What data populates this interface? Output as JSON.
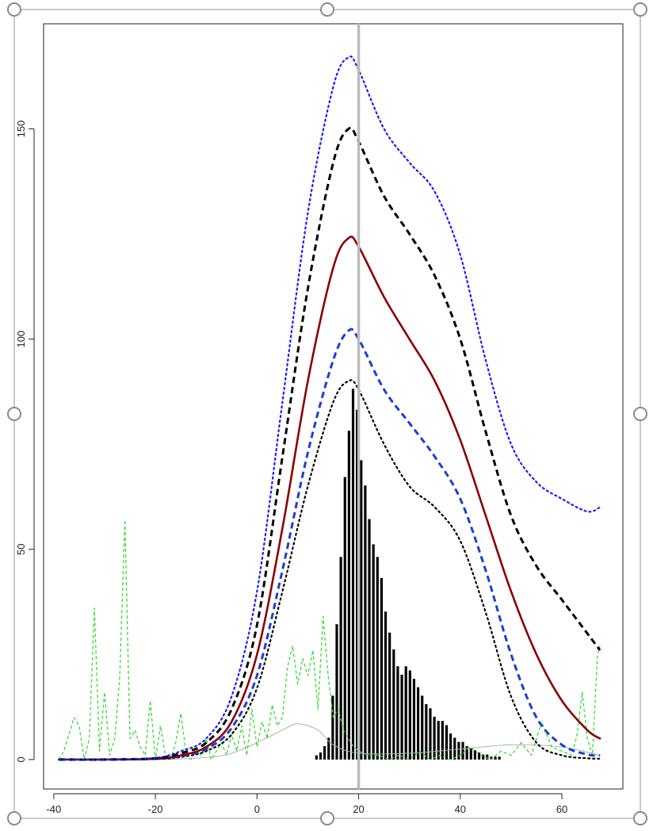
{
  "chart_data": {
    "type": "line",
    "title": "",
    "xlabel": "",
    "ylabel": "",
    "xlim": [
      -42,
      72
    ],
    "ylim": [
      -7,
      175
    ],
    "x_ticks": [
      -40,
      -20,
      0,
      20,
      40,
      60
    ],
    "x_tick_labels": [
      "-40",
      "-20",
      "0",
      "20",
      "40",
      "60"
    ],
    "y_ticks": [
      0,
      50,
      100,
      150
    ],
    "y_tick_labels": [
      "0",
      "50",
      "100",
      "150"
    ],
    "grid": false,
    "legend": "none",
    "vertical_line_x": 20,
    "colors": {
      "solid": "#8b0000",
      "black_dashed": "#000000",
      "blue_dotted": "#1a1aff",
      "blue_dashed": "#1a3fd6",
      "black_dotted": "#000000",
      "green_dashed": "#33dd33",
      "gray_thin": "#b0b0b0",
      "bars": "#000000",
      "vline": "#bbbbbb",
      "selection_handles": "#888888"
    },
    "series": [
      {
        "style": "solid",
        "color_key": "solid",
        "x": [
          -39,
          -30,
          -20,
          -15,
          -10,
          -5,
          0,
          5,
          10,
          15,
          18,
          20,
          25,
          30,
          35,
          40,
          45,
          50,
          55,
          60,
          65,
          67.5
        ],
        "y": [
          0,
          0,
          0.2,
          1,
          3,
          9,
          25,
          55,
          90,
          117,
          124,
          122,
          110,
          100,
          90,
          76,
          58,
          40,
          25,
          14,
          7,
          5
        ]
      },
      {
        "style": "dashed",
        "color_key": "black_dashed",
        "x": [
          -39,
          -30,
          -20,
          -15,
          -10,
          -5,
          0,
          5,
          10,
          15,
          18,
          20,
          25,
          30,
          35,
          40,
          45,
          50,
          55,
          60,
          65,
          67.5
        ],
        "y": [
          0,
          0,
          0.3,
          1.5,
          4,
          12,
          32,
          72,
          112,
          142,
          150,
          147,
          134,
          125,
          115,
          100,
          78,
          58,
          46,
          38,
          30,
          26
        ]
      },
      {
        "style": "dotted",
        "color_key": "blue_dotted",
        "x": [
          -39,
          -30,
          -20,
          -15,
          -10,
          -5,
          0,
          5,
          10,
          15,
          18,
          20,
          25,
          30,
          35,
          40,
          45,
          50,
          55,
          60,
          65,
          67.5
        ],
        "y": [
          0,
          0,
          0.4,
          2,
          5,
          15,
          40,
          85,
          130,
          160,
          167,
          164,
          150,
          142,
          135,
          120,
          95,
          75,
          66,
          62,
          59,
          60
        ]
      },
      {
        "style": "dashed",
        "color_key": "blue_dashed",
        "x": [
          -39,
          -30,
          -20,
          -15,
          -10,
          -5,
          0,
          5,
          10,
          15,
          18,
          20,
          25,
          30,
          35,
          40,
          45,
          50,
          55,
          60,
          65,
          67.5
        ],
        "y": [
          0,
          0,
          0.2,
          0.8,
          2.5,
          7.5,
          20,
          45,
          73,
          95,
          102,
          100,
          88,
          80,
          72,
          62,
          45,
          25,
          10,
          3.5,
          1.2,
          1
        ]
      },
      {
        "style": "dotted",
        "color_key": "black_dotted",
        "x": [
          -39,
          -30,
          -20,
          -15,
          -10,
          -5,
          0,
          5,
          10,
          15,
          18,
          20,
          25,
          30,
          35,
          40,
          45,
          50,
          55,
          60,
          65,
          67.5
        ],
        "y": [
          0,
          0,
          0.1,
          0.6,
          2,
          6,
          17,
          40,
          65,
          85,
          90,
          88,
          75,
          65,
          60,
          52,
          35,
          15,
          4,
          1,
          0.3,
          0.2
        ]
      },
      {
        "style": "thin",
        "color_key": "gray_thin",
        "x": [
          -39,
          -20,
          -10,
          -5,
          0,
          5,
          8,
          12,
          15,
          20,
          30,
          40,
          50,
          60,
          67.5
        ],
        "y": [
          0,
          0,
          0.5,
          1.5,
          4,
          7,
          8.5,
          7,
          3.5,
          1.5,
          1.5,
          2.5,
          3.5,
          3,
          1
        ]
      },
      {
        "style": "dashed-thin",
        "color_key": "green_dashed",
        "x": [
          -39,
          -38,
          -36,
          -35,
          -34,
          -33,
          -32,
          -31,
          -30,
          -29,
          -28,
          -27,
          -26,
          -25,
          -24,
          -23,
          -22,
          -21,
          -20,
          -19,
          -18,
          -17,
          -16,
          -15,
          -14,
          -13,
          -12,
          -11,
          -10,
          -9,
          -8,
          -7,
          -6,
          -5,
          -4,
          -3,
          -2,
          -1,
          0,
          1,
          2,
          3,
          4,
          5,
          6,
          7,
          8,
          9,
          10,
          11,
          12,
          13,
          14,
          15,
          16,
          17,
          18,
          19,
          20,
          22,
          24,
          26,
          28,
          30,
          32,
          34,
          36,
          38,
          40,
          42,
          44,
          46,
          48,
          50,
          52,
          54,
          56,
          58,
          60,
          62,
          63,
          64,
          65,
          66,
          67,
          67.5
        ],
        "y": [
          0,
          2,
          10,
          8,
          0,
          5,
          36,
          2,
          16,
          1,
          5,
          20,
          57,
          5,
          7,
          3,
          1,
          14,
          0,
          8,
          1,
          0,
          4,
          11,
          2,
          0,
          3,
          1,
          5,
          0,
          2,
          4,
          1,
          6,
          2,
          8,
          1,
          12,
          3,
          9,
          5,
          13,
          8,
          10,
          22,
          27,
          18,
          24,
          20,
          26,
          12,
          34,
          20,
          10,
          12,
          7,
          5,
          3,
          2,
          1,
          1,
          0,
          1,
          0,
          2,
          0,
          1,
          0,
          1,
          3,
          1,
          0,
          2,
          1,
          4,
          1,
          9,
          3,
          2,
          1,
          6,
          16,
          5,
          1,
          25,
          27
        ]
      }
    ],
    "bars": {
      "color_key": "bars",
      "x": [
        11.7,
        12.5,
        13.3,
        14.1,
        14.9,
        15.7,
        16.5,
        17.3,
        18.1,
        18.9,
        19.7,
        20.5,
        21.3,
        22.1,
        22.9,
        23.7,
        24.5,
        25.3,
        26.1,
        26.9,
        27.7,
        28.5,
        29.3,
        30.1,
        30.9,
        31.7,
        32.5,
        33.3,
        34.1,
        34.9,
        35.7,
        36.5,
        37.3,
        38.1,
        38.9,
        39.7,
        40.5,
        41.3,
        42.1,
        42.9,
        43.7,
        44.5,
        45.3,
        46.1,
        46.9,
        47.7
      ],
      "y": [
        0.8,
        1.5,
        3,
        5,
        15,
        32,
        48,
        67,
        78,
        88,
        83,
        71,
        65,
        57,
        51,
        48,
        43,
        35,
        30,
        26,
        22,
        20,
        22,
        21,
        19,
        17,
        15,
        13,
        12,
        10,
        9,
        9,
        8,
        6,
        5,
        4,
        4,
        3,
        2.5,
        2,
        1.5,
        1,
        1,
        0.5,
        0.5,
        0.5
      ]
    }
  }
}
